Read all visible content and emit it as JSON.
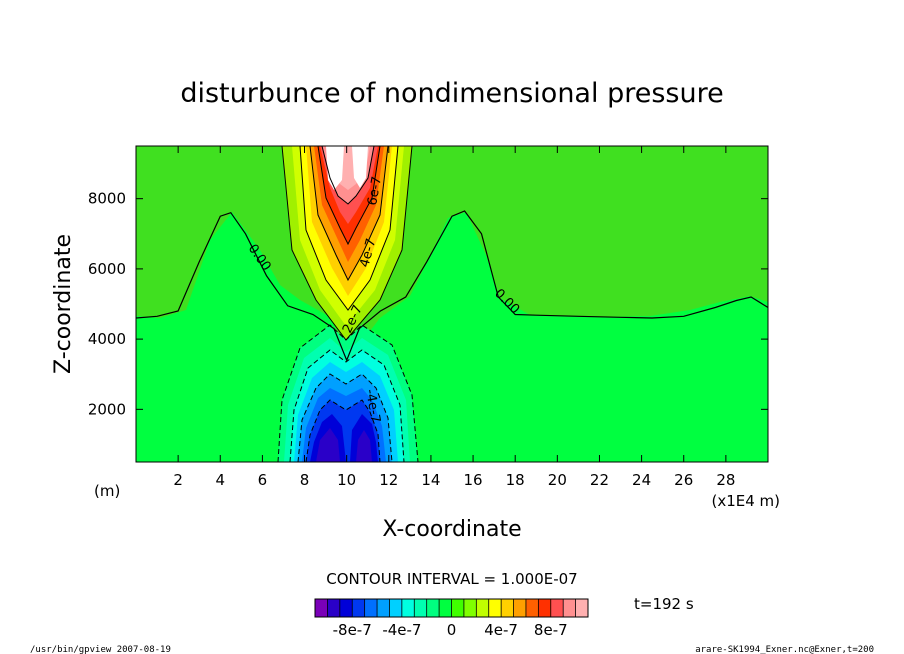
{
  "chart_data": {
    "type": "contour",
    "title": "disturbunce of nondimensional pressure",
    "xlabel": "X-coordinate",
    "ylabel": "Z-coordinate",
    "x_unit_label": "(m)",
    "x_scale_label": "(x1E4 m)",
    "xlim": [
      0,
      30
    ],
    "ylim": [
      500,
      9500
    ],
    "x_ticks": [
      "2",
      "4",
      "6",
      "8",
      "10",
      "12",
      "14",
      "16",
      "18",
      "20",
      "22",
      "24",
      "26",
      "28"
    ],
    "y_ticks": [
      "2000",
      "4000",
      "6000",
      "8000"
    ],
    "contour_interval_text": "CONTOUR INTERVAL = 1.000E-07",
    "contour_labels": [
      "0.00",
      "0.00",
      "2e-7",
      "4e-7",
      "6e-7",
      "-4e-7"
    ],
    "zero_contour_x": [
      0,
      1,
      2,
      3,
      4,
      4.5,
      5.2,
      6.2,
      7.2,
      8.4,
      9.4,
      10,
      10.6,
      11.6,
      12.8,
      13.8,
      15,
      15.6,
      16.4,
      17.2,
      18,
      19,
      21,
      23,
      24.5,
      26,
      27.5,
      28.5,
      29.2,
      30
    ],
    "zero_contour_z": [
      4600,
      4650,
      4800,
      6200,
      7500,
      7600,
      7000,
      5800,
      4950,
      4700,
      4300,
      3400,
      4300,
      4800,
      5200,
      6200,
      7500,
      7650,
      7000,
      5200,
      4700,
      4680,
      4650,
      4620,
      4600,
      4650,
      4900,
      5100,
      5200,
      4900
    ],
    "max_contour_value": 1.2e-06,
    "min_contour_value": -9e-07,
    "colorbar_tick_labels": [
      "-8e-7",
      "-4e-7",
      "0",
      "4e-7",
      "8e-7"
    ],
    "colorbar_colors": [
      "#7a00b8",
      "#2a00c8",
      "#0000d8",
      "#0038f0",
      "#0070ff",
      "#00a0ff",
      "#00d0ff",
      "#00ffe0",
      "#00ffb0",
      "#00ff80",
      "#00ff40",
      "#40ff00",
      "#80ff00",
      "#c0ff00",
      "#ffff00",
      "#ffd000",
      "#ffa000",
      "#ff6000",
      "#ff3000",
      "#ff5050",
      "#ff9090",
      "#ffb0b0"
    ],
    "background_fill_color": "#33e633",
    "positive_high_color": "#ff3000",
    "negative_low_color": "#0000d8",
    "time_label": "t=192 s"
  },
  "footer": {
    "left": "/usr/bin/gpview   2007-08-19",
    "right": "arare-SK1994_Exner.nc@Exner,t=200"
  }
}
